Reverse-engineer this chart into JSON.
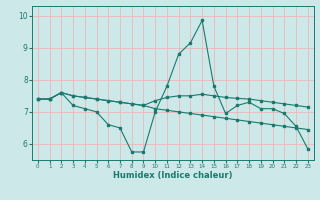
{
  "xlabel": "Humidex (Indice chaleur)",
  "xlim": [
    -0.5,
    23.5
  ],
  "ylim": [
    5.5,
    10.3
  ],
  "yticks": [
    6,
    7,
    8,
    9,
    10
  ],
  "xticks": [
    0,
    1,
    2,
    3,
    4,
    5,
    6,
    7,
    8,
    9,
    10,
    11,
    12,
    13,
    14,
    15,
    16,
    17,
    18,
    19,
    20,
    21,
    22,
    23
  ],
  "bg_color": "#cce8e8",
  "grid_color": "#e8b8b8",
  "line_color": "#1a7a6e",
  "line1_x": [
    0,
    1,
    2,
    3,
    4,
    5,
    6,
    7,
    8,
    9,
    10,
    11,
    12,
    13,
    14,
    15,
    16,
    17,
    18,
    19,
    20,
    21,
    22,
    23
  ],
  "line1_y": [
    7.4,
    7.4,
    7.6,
    7.2,
    7.1,
    7.0,
    6.6,
    6.5,
    5.75,
    5.75,
    7.0,
    7.8,
    8.8,
    9.15,
    9.85,
    7.8,
    6.95,
    7.2,
    7.3,
    7.1,
    7.1,
    6.95,
    6.55,
    5.85
  ],
  "line2_x": [
    0,
    1,
    2,
    3,
    4,
    5,
    6,
    7,
    8,
    9,
    10,
    11,
    12,
    13,
    14,
    15,
    16,
    17,
    18,
    19,
    20,
    21,
    22,
    23
  ],
  "line2_y": [
    7.4,
    7.4,
    7.6,
    7.5,
    7.45,
    7.4,
    7.35,
    7.3,
    7.25,
    7.2,
    7.1,
    7.05,
    7.0,
    6.95,
    6.9,
    6.85,
    6.8,
    6.75,
    6.7,
    6.65,
    6.6,
    6.55,
    6.5,
    6.45
  ],
  "line3_x": [
    0,
    1,
    2,
    3,
    4,
    5,
    6,
    7,
    8,
    9,
    10,
    11,
    12,
    13,
    14,
    15,
    16,
    17,
    18,
    19,
    20,
    21,
    22,
    23
  ],
  "line3_y": [
    7.4,
    7.4,
    7.6,
    7.5,
    7.45,
    7.4,
    7.35,
    7.3,
    7.25,
    7.2,
    7.35,
    7.45,
    7.5,
    7.5,
    7.55,
    7.5,
    7.45,
    7.42,
    7.4,
    7.35,
    7.3,
    7.25,
    7.2,
    7.15
  ]
}
